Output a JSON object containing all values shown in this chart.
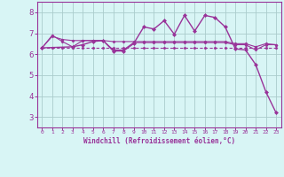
{
  "bg_color": "#d8f5f5",
  "line_color": "#993399",
  "grid_color": "#aacccc",
  "xlabel": "Windchill (Refroidissement éolien,°C)",
  "ylim": [
    2.5,
    8.5
  ],
  "xlim": [
    -0.5,
    23.5
  ],
  "yticks": [
    3,
    4,
    5,
    6,
    7,
    8
  ],
  "xticks": [
    0,
    1,
    2,
    3,
    4,
    5,
    6,
    7,
    8,
    9,
    10,
    11,
    12,
    13,
    14,
    15,
    16,
    17,
    18,
    19,
    20,
    21,
    22,
    23
  ],
  "series": [
    {
      "x": [
        0,
        1,
        2,
        3,
        4,
        5,
        6,
        7,
        8,
        9,
        10,
        11,
        12,
        13,
        14,
        15,
        16,
        17,
        18,
        19,
        20,
        21,
        22,
        23
      ],
      "y": [
        6.3,
        6.3,
        6.3,
        6.3,
        6.3,
        6.3,
        6.3,
        6.3,
        6.3,
        6.3,
        6.3,
        6.3,
        6.3,
        6.3,
        6.3,
        6.3,
        6.3,
        6.3,
        6.3,
        6.3,
        6.3,
        6.3,
        6.3,
        6.3
      ],
      "marker": "D",
      "markersize": 1.5,
      "linewidth": 0.8,
      "dashes": [
        3,
        2
      ]
    },
    {
      "x": [
        0,
        1,
        2,
        3,
        4,
        5,
        6,
        7,
        8,
        9,
        10,
        11,
        12,
        13,
        14,
        15,
        16,
        17,
        18,
        19,
        20,
        21,
        22,
        23
      ],
      "y": [
        6.3,
        6.9,
        6.6,
        6.35,
        6.65,
        6.65,
        6.65,
        6.2,
        6.2,
        6.55,
        6.55,
        6.55,
        6.55,
        6.55,
        6.55,
        6.55,
        6.55,
        6.55,
        6.55,
        6.45,
        6.45,
        6.2,
        6.45,
        6.45
      ],
      "marker": "D",
      "markersize": 1.5,
      "linewidth": 0.8,
      "dashes": []
    },
    {
      "x": [
        0,
        1,
        2,
        3,
        4,
        5,
        6,
        7,
        8,
        9,
        10,
        11,
        12,
        13,
        14,
        15,
        16,
        17,
        18,
        19,
        20,
        21,
        22,
        23
      ],
      "y": [
        6.3,
        6.85,
        6.7,
        6.65,
        6.65,
        6.65,
        6.65,
        6.6,
        6.6,
        6.6,
        6.6,
        6.6,
        6.6,
        6.6,
        6.6,
        6.6,
        6.6,
        6.6,
        6.6,
        6.5,
        6.5,
        6.35,
        6.5,
        6.45
      ],
      "marker": "D",
      "markersize": 1.5,
      "linewidth": 0.8,
      "dashes": []
    },
    {
      "x": [
        0,
        3,
        4,
        5,
        6,
        7,
        8,
        9,
        10,
        11,
        12,
        13,
        14,
        15,
        16,
        17,
        18,
        19,
        20,
        21,
        22,
        23
      ],
      "y": [
        6.3,
        6.35,
        6.45,
        6.6,
        6.65,
        6.15,
        6.15,
        6.5,
        7.3,
        7.2,
        7.6,
        6.95,
        7.85,
        7.1,
        7.85,
        7.75,
        7.3,
        6.25,
        6.2,
        5.5,
        4.2,
        3.2
      ],
      "marker": "D",
      "markersize": 2.0,
      "linewidth": 1.0,
      "dashes": []
    }
  ]
}
